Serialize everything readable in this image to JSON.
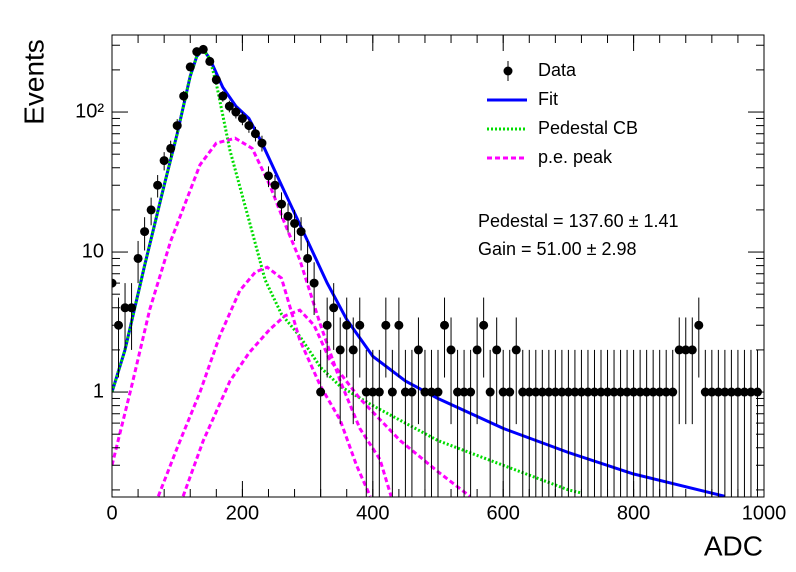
{
  "chart_data": {
    "type": "scatter",
    "xlabel": "ADC",
    "ylabel": "Events",
    "log_y": true,
    "xlim": [
      0,
      1000
    ],
    "ylim": [
      0.178,
      355
    ],
    "xticks": [
      0,
      200,
      400,
      600,
      800,
      1000
    ],
    "yticks": [
      1,
      10,
      {
        "value": 100,
        "label": "10²"
      }
    ],
    "legend": "upper right",
    "annotations": [
      "Pedestal = 137.60 ± 1.41",
      "Gain = 51.00 ± 2.98"
    ],
    "series": [
      {
        "name": "Data",
        "type": "errorbar",
        "color": "#000000",
        "x": [
          0,
          10,
          20,
          30,
          40,
          50,
          60,
          70,
          80,
          90,
          100,
          110,
          120,
          130,
          140,
          150,
          160,
          170,
          180,
          190,
          200,
          210,
          220,
          230,
          240,
          250,
          260,
          270,
          280,
          290,
          300,
          310,
          320,
          330,
          340,
          350,
          360,
          370,
          380,
          390,
          400,
          410,
          420,
          430,
          440,
          450,
          460,
          470,
          480,
          490,
          500,
          510,
          520,
          530,
          540,
          550,
          560,
          570,
          580,
          590,
          600,
          610,
          620,
          630,
          640,
          650,
          660,
          670,
          680,
          690,
          700,
          710,
          720,
          730,
          740,
          750,
          760,
          770,
          780,
          790,
          800,
          810,
          820,
          830,
          840,
          850,
          860,
          870,
          880,
          890,
          900,
          910,
          920,
          930,
          940,
          950,
          960,
          970,
          980,
          990
        ],
        "values": [
          6,
          3,
          4,
          4,
          9,
          14,
          20,
          30,
          45,
          55,
          80,
          130,
          210,
          270,
          280,
          230,
          170,
          130,
          110,
          100,
          90,
          80,
          70,
          60,
          35,
          30,
          22,
          18,
          16,
          14,
          9,
          6,
          1,
          3,
          4,
          2,
          3,
          2,
          3,
          1,
          1,
          1,
          3,
          1,
          3,
          1,
          1,
          2,
          1,
          1,
          1,
          3,
          2,
          1,
          1,
          1,
          2,
          3,
          1,
          2,
          1,
          1,
          2,
          1,
          1,
          1,
          1,
          1,
          1,
          1,
          1,
          1,
          1,
          1,
          1,
          1,
          1,
          1,
          1,
          1,
          1,
          1,
          1,
          1,
          1,
          1,
          1,
          2,
          2,
          2,
          3,
          1,
          1,
          1,
          1,
          1,
          1,
          1,
          1,
          1
        ],
        "errors": [
          2.45,
          1.73,
          2,
          2,
          3,
          3.74,
          4.47,
          5.48,
          6.71,
          7.42,
          8.94,
          11.4,
          14.49,
          16.43,
          16.73,
          15.17,
          13.04,
          11.4,
          10.49,
          10,
          9.49,
          8.94,
          8.37,
          7.75,
          5.92,
          5.48,
          4.69,
          4.24,
          4,
          3.74,
          3,
          2.45,
          1,
          1.73,
          2,
          1.41,
          1.73,
          1.41,
          1.73,
          1,
          1,
          1,
          1.73,
          1,
          1.73,
          1,
          1,
          1.41,
          1,
          1,
          1,
          1.73,
          1.41,
          1,
          1,
          1,
          1.41,
          1.73,
          1,
          1.41,
          1,
          1,
          1.41,
          1,
          1,
          1,
          1,
          1,
          1,
          1,
          1,
          1,
          1,
          1,
          1,
          1,
          1,
          1,
          1,
          1,
          1,
          1,
          1,
          1,
          1,
          1,
          1,
          1.41,
          1.41,
          1.41,
          1.73,
          1,
          1,
          1,
          1,
          1,
          1,
          1,
          1,
          1
        ]
      },
      {
        "name": "Fit",
        "type": "line",
        "style": "solid",
        "color": "#0000ff",
        "x": [
          0,
          20,
          50,
          80,
          100,
          120,
          130,
          140,
          150,
          170,
          190,
          210,
          230,
          260,
          300,
          330,
          360,
          400,
          450,
          500,
          600,
          700,
          800,
          900,
          940
        ],
        "values": [
          1.0,
          2,
          8,
          30,
          70,
          180,
          250,
          280,
          240,
          150,
          110,
          90,
          60,
          30,
          12,
          6,
          3.3,
          1.8,
          1.2,
          0.9,
          0.55,
          0.37,
          0.26,
          0.2,
          0.18
        ]
      },
      {
        "name": "Pedestal CB",
        "type": "line",
        "style": "dotted",
        "color": "#00dd00",
        "x": [
          0,
          20,
          50,
          80,
          100,
          120,
          130,
          140,
          150,
          160,
          181,
          210,
          235,
          260,
          288,
          320,
          350,
          400,
          500,
          600,
          700,
          720
        ],
        "values": [
          1,
          2,
          8,
          30,
          70,
          180,
          250,
          280,
          240,
          160,
          53,
          17,
          6.3,
          3.6,
          2.5,
          1.5,
          1.1,
          0.8,
          0.45,
          0.3,
          0.2,
          0.19
        ]
      },
      {
        "name": "p.e. peak",
        "type": "line",
        "style": "dashed",
        "color": "#ff00ff",
        "x": [
          0,
          30,
          58,
          90,
          135,
          160,
          189,
          215,
          242,
          265,
          288,
          320,
          350,
          380,
          411,
          428
        ],
        "values": [
          0.3,
          1.1,
          3.9,
          12,
          42,
          60,
          65,
          55,
          30,
          16,
          8.8,
          3,
          1.2,
          0.55,
          0.33,
          0.18
        ]
      },
      {
        "name": "p.e. peak",
        "type": "line",
        "style": "dashed",
        "color": "#ff00ff",
        "x": [
          71,
          100,
          135,
          165,
          196,
          220,
          238,
          260,
          288,
          320,
          350,
          375,
          396
        ],
        "values": [
          0.18,
          0.4,
          1.0,
          2.5,
          5.3,
          7.2,
          7.8,
          6.5,
          2.35,
          1.1,
          0.63,
          0.3,
          0.18
        ]
      },
      {
        "name": "p.e. peak",
        "type": "line",
        "style": "dashed",
        "color": "#ff00ff",
        "x": [
          109,
          140,
          181,
          210,
          242,
          265,
          288,
          310,
          334,
          380,
          442,
          500,
          549
        ],
        "values": [
          0.18,
          0.45,
          1.2,
          1.9,
          2.8,
          3.5,
          3.85,
          3.0,
          1.7,
          0.9,
          0.45,
          0.27,
          0.18
        ]
      }
    ]
  }
}
